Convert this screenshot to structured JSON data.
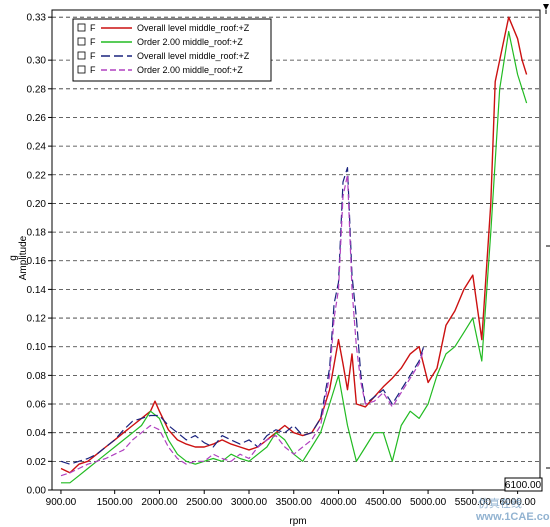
{
  "chart_data": {
    "type": "line",
    "xlabel": "rpm",
    "ylabel": "g\nAmplitude",
    "xlim": [
      800,
      6250
    ],
    "ylim": [
      0,
      0.335
    ],
    "grid": "horizontal dashed",
    "legend_position": "top-left",
    "x_tick_labels": [
      "900.00",
      "1500.00",
      "2000.00",
      "2500.00",
      "3000.00",
      "3500.00",
      "4000.00",
      "4500.00",
      "5000.00",
      "5500.00",
      "6000.00",
      "6100.00"
    ],
    "y_tick_labels": [
      "0.00",
      "0.02",
      "0.04",
      "0.06",
      "0.08",
      "0.10",
      "0.12",
      "0.14",
      "0.16",
      "0.18",
      "0.20",
      "0.22",
      "0.24",
      "0.26",
      "0.28",
      "0.30",
      "0.33"
    ],
    "cursor_label": "6100.00",
    "series": [
      {
        "name": "Overall level middle_roof:+Z",
        "color": "#cc1111",
        "dash": "solid",
        "x": [
          900,
          1000,
          1100,
          1200,
          1300,
          1400,
          1500,
          1600,
          1700,
          1800,
          1900,
          1950,
          2000,
          2100,
          2200,
          2300,
          2400,
          2500,
          2600,
          2700,
          2800,
          2900,
          3000,
          3100,
          3200,
          3300,
          3400,
          3500,
          3600,
          3700,
          3800,
          3900,
          4000,
          4050,
          4100,
          4150,
          4200,
          4300,
          4400,
          4500,
          4600,
          4700,
          4800,
          4900,
          5000,
          5100,
          5200,
          5300,
          5400,
          5500,
          5600,
          5700,
          5750,
          5800,
          5900,
          6000,
          6050,
          6100
        ],
        "y": [
          0.015,
          0.012,
          0.018,
          0.02,
          0.025,
          0.03,
          0.035,
          0.04,
          0.045,
          0.05,
          0.055,
          0.062,
          0.055,
          0.042,
          0.035,
          0.032,
          0.03,
          0.03,
          0.032,
          0.035,
          0.032,
          0.03,
          0.028,
          0.03,
          0.035,
          0.04,
          0.045,
          0.04,
          0.038,
          0.04,
          0.05,
          0.07,
          0.105,
          0.088,
          0.07,
          0.095,
          0.06,
          0.058,
          0.065,
          0.072,
          0.078,
          0.085,
          0.095,
          0.1,
          0.075,
          0.085,
          0.115,
          0.125,
          0.14,
          0.15,
          0.105,
          0.2,
          0.285,
          0.3,
          0.33,
          0.315,
          0.3,
          0.29
        ]
      },
      {
        "name": "Order 2.00 middle_roof:+Z",
        "color": "#22bb22",
        "dash": "solid",
        "x": [
          900,
          1000,
          1100,
          1200,
          1300,
          1400,
          1500,
          1600,
          1700,
          1800,
          1900,
          2000,
          2100,
          2200,
          2300,
          2400,
          2500,
          2600,
          2700,
          2800,
          2900,
          3000,
          3100,
          3200,
          3300,
          3400,
          3500,
          3600,
          3700,
          3800,
          3900,
          4000,
          4100,
          4200,
          4300,
          4400,
          4500,
          4600,
          4700,
          4800,
          4900,
          5000,
          5100,
          5200,
          5300,
          5400,
          5500,
          5600,
          5700,
          5800,
          5900,
          6000,
          6100
        ],
        "y": [
          0.005,
          0.005,
          0.01,
          0.015,
          0.02,
          0.025,
          0.03,
          0.035,
          0.04,
          0.045,
          0.055,
          0.05,
          0.035,
          0.025,
          0.02,
          0.018,
          0.02,
          0.022,
          0.02,
          0.025,
          0.022,
          0.02,
          0.025,
          0.03,
          0.04,
          0.035,
          0.025,
          0.02,
          0.03,
          0.04,
          0.06,
          0.08,
          0.045,
          0.02,
          0.03,
          0.04,
          0.04,
          0.02,
          0.045,
          0.055,
          0.05,
          0.06,
          0.08,
          0.095,
          0.1,
          0.11,
          0.12,
          0.09,
          0.18,
          0.28,
          0.32,
          0.29,
          0.27
        ]
      },
      {
        "name": "Overall level middle_roof:+Z",
        "color": "#1a237e",
        "dash": "long",
        "x": [
          900,
          1000,
          1100,
          1200,
          1300,
          1400,
          1500,
          1600,
          1700,
          1800,
          1900,
          2000,
          2100,
          2200,
          2300,
          2400,
          2500,
          2600,
          2700,
          2800,
          2900,
          3000,
          3100,
          3200,
          3300,
          3400,
          3500,
          3600,
          3700,
          3800,
          3900,
          3950,
          4000,
          4050,
          4100,
          4150,
          4200,
          4250,
          4300,
          4400,
          4500,
          4600,
          4700,
          4800,
          4900,
          4950
        ],
        "y": [
          0.02,
          0.018,
          0.02,
          0.022,
          0.025,
          0.03,
          0.035,
          0.042,
          0.048,
          0.05,
          0.052,
          0.052,
          0.045,
          0.04,
          0.035,
          0.038,
          0.033,
          0.03,
          0.038,
          0.035,
          0.032,
          0.035,
          0.03,
          0.038,
          0.042,
          0.04,
          0.045,
          0.038,
          0.04,
          0.05,
          0.085,
          0.13,
          0.145,
          0.215,
          0.225,
          0.15,
          0.12,
          0.08,
          0.06,
          0.065,
          0.07,
          0.06,
          0.07,
          0.08,
          0.09,
          0.1
        ]
      },
      {
        "name": "Order 2.00 middle_roof:+Z",
        "color": "#b040c0",
        "dash": "medium",
        "x": [
          900,
          1000,
          1100,
          1200,
          1300,
          1400,
          1500,
          1600,
          1700,
          1800,
          1900,
          2000,
          2100,
          2200,
          2300,
          2400,
          2500,
          2600,
          2700,
          2800,
          2900,
          3000,
          3100,
          3200,
          3300,
          3400,
          3500,
          3600,
          3700,
          3800,
          3900,
          3950,
          4000,
          4050,
          4100,
          4150,
          4200,
          4250,
          4300,
          4400,
          4500,
          4600,
          4700,
          4800,
          4900,
          4950
        ],
        "y": [
          0.01,
          0.012,
          0.015,
          0.018,
          0.02,
          0.022,
          0.025,
          0.028,
          0.035,
          0.04,
          0.045,
          0.042,
          0.03,
          0.022,
          0.018,
          0.02,
          0.02,
          0.025,
          0.022,
          0.02,
          0.025,
          0.022,
          0.03,
          0.035,
          0.038,
          0.03,
          0.025,
          0.03,
          0.035,
          0.045,
          0.08,
          0.12,
          0.14,
          0.205,
          0.22,
          0.14,
          0.1,
          0.075,
          0.06,
          0.062,
          0.068,
          0.058,
          0.068,
          0.078,
          0.088,
          0.098
        ]
      }
    ]
  },
  "legend": {
    "checkbox_label": "F"
  },
  "watermark": {
    "text1": "仿真在线",
    "text2": "www.1CAE.com"
  }
}
